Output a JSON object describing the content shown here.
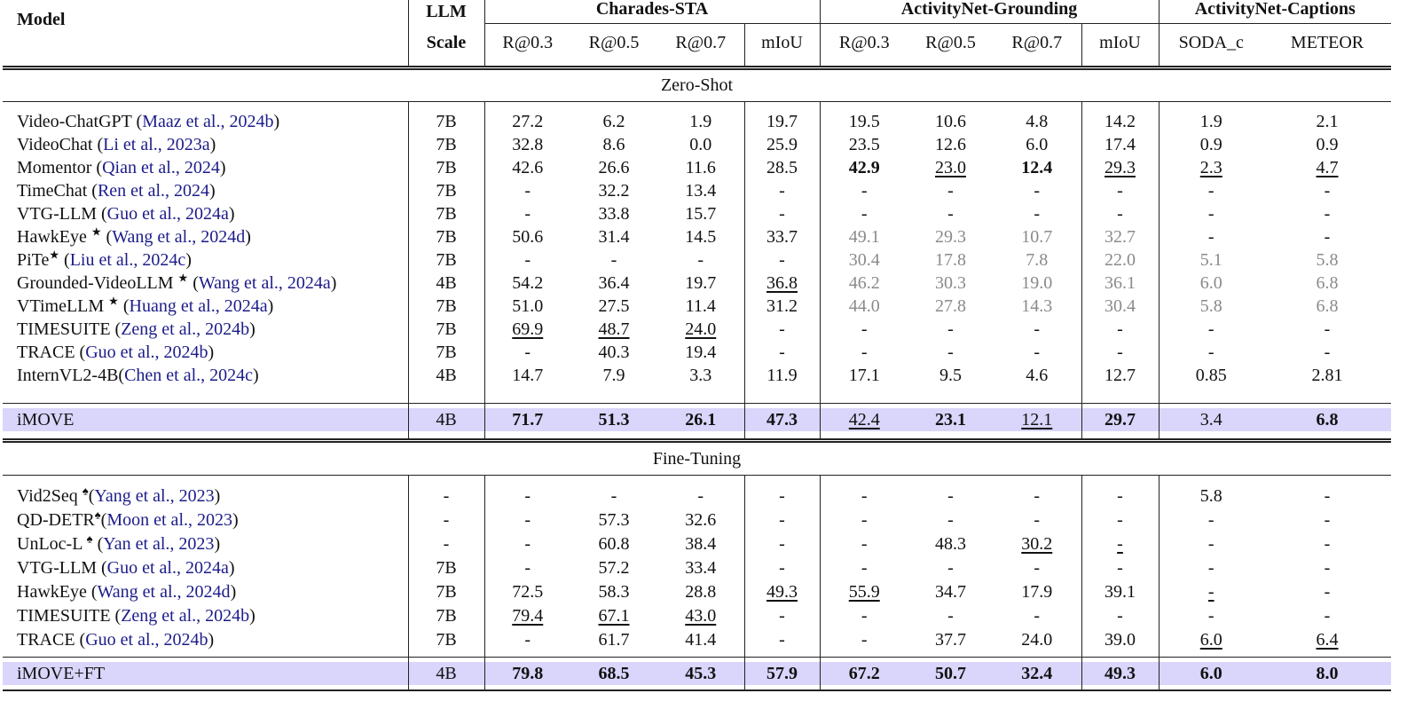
{
  "header": {
    "model": "Model",
    "llm": "LLM",
    "scale": "Scale",
    "groups": [
      "Charades-STA",
      "ActivityNet-Grounding",
      "ActivityNet-Captions"
    ],
    "metrics": [
      "R@0.3",
      "R@0.5",
      "R@0.7",
      "mIoU",
      "R@0.3",
      "R@0.5",
      "R@0.7",
      "mIoU",
      "SODA_c",
      "METEOR"
    ]
  },
  "sections": [
    {
      "title": "Zero-Shot",
      "rows": [
        {
          "model": "Video-ChatGPT (Maaz et al., 2024b)",
          "scale": "7B",
          "values": [
            "27.2",
            "6.2",
            "1.9",
            "19.7",
            "19.5",
            "10.6",
            "4.8",
            "14.2",
            "1.9",
            "2.1"
          ]
        },
        {
          "model": "VideoChat (Li et al., 2023a)",
          "scale": "7B",
          "values": [
            "32.8",
            "8.6",
            "0.0",
            "25.9",
            "23.5",
            "12.6",
            "6.0",
            "17.4",
            "0.9",
            "0.9"
          ]
        },
        {
          "model": "Momentor (Qian et al., 2024)",
          "scale": "7B",
          "values": [
            "42.6",
            "26.6",
            "11.6",
            "28.5",
            "42.9",
            "23.0",
            "12.4",
            "29.3",
            "2.3",
            "4.7"
          ]
        },
        {
          "model": "TimeChat (Ren et al., 2024)",
          "scale": "7B",
          "values": [
            "-",
            "32.2",
            "13.4",
            "-",
            "-",
            "-",
            "-",
            "-",
            "-",
            "-"
          ]
        },
        {
          "model": "VTG-LLM (Guo et al., 2024a)",
          "scale": "7B",
          "values": [
            "-",
            "33.8",
            "15.7",
            "-",
            "-",
            "-",
            "-",
            "-",
            "-",
            "-"
          ]
        },
        {
          "model": "HawkEye ★ (Wang et al., 2024d)",
          "scale": "7B",
          "values": [
            "50.6",
            "31.4",
            "14.5",
            "33.7",
            "49.1",
            "29.3",
            "10.7",
            "32.7",
            "-",
            "-"
          ]
        },
        {
          "model": "PiTe★ (Liu et al., 2024c)",
          "scale": "7B",
          "values": [
            "-",
            "-",
            "-",
            "-",
            "30.4",
            "17.8",
            "7.8",
            "22.0",
            "5.1",
            "5.8"
          ]
        },
        {
          "model": "Grounded-VideoLLM ★ (Wang et al., 2024a)",
          "scale": "4B",
          "values": [
            "54.2",
            "36.4",
            "19.7",
            "36.8",
            "46.2",
            "30.3",
            "19.0",
            "36.1",
            "6.0",
            "6.8"
          ]
        },
        {
          "model": "VTimeLLM ★ (Huang et al., 2024a)",
          "scale": "7B",
          "values": [
            "51.0",
            "27.5",
            "11.4",
            "31.2",
            "44.0",
            "27.8",
            "14.3",
            "30.4",
            "5.8",
            "6.8"
          ]
        },
        {
          "model": "TIMESUITE (Zeng et al., 2024b)",
          "scale": "7B",
          "values": [
            "69.9",
            "48.7",
            "24.0",
            "-",
            "-",
            "-",
            "-",
            "-",
            "-",
            "-"
          ]
        },
        {
          "model": "TRACE (Guo et al., 2024b)",
          "scale": "7B",
          "values": [
            "-",
            "40.3",
            "19.4",
            "-",
            "-",
            "-",
            "-",
            "-",
            "-",
            "-"
          ]
        },
        {
          "model": "InternVL2-4B(Chen et al., 2024c)",
          "scale": "4B",
          "values": [
            "14.7",
            "7.9",
            "3.3",
            "11.9",
            "17.1",
            "9.5",
            "4.6",
            "12.7",
            "0.85",
            "2.81"
          ]
        }
      ],
      "ours": {
        "model": "iMOVE",
        "scale": "4B",
        "values": [
          "71.7",
          "51.3",
          "26.1",
          "47.3",
          "42.4",
          "23.1",
          "12.1",
          "29.7",
          "3.4",
          "6.8"
        ]
      }
    },
    {
      "title": "Fine-Tuning",
      "rows": [
        {
          "model": "Vid2Seq ♠(Yang et al., 2023)",
          "scale": "-",
          "values": [
            "-",
            "-",
            "-",
            "-",
            "-",
            "-",
            "-",
            "-",
            "5.8",
            "-"
          ]
        },
        {
          "model": "QD-DETR♠(Moon et al., 2023)",
          "scale": "-",
          "values": [
            "-",
            "57.3",
            "32.6",
            "-",
            "-",
            "-",
            "-",
            "-",
            "-",
            "-"
          ]
        },
        {
          "model": "UnLoc-L ♠ (Yan et al., 2023)",
          "scale": "-",
          "values": [
            "-",
            "60.8",
            "38.4",
            "-",
            "-",
            "48.3",
            "30.2",
            "-",
            "-",
            "-"
          ]
        },
        {
          "model": "VTG-LLM (Guo et al., 2024a)",
          "scale": "7B",
          "values": [
            "-",
            "57.2",
            "33.4",
            "-",
            "-",
            "-",
            "-",
            "-",
            "-",
            "-"
          ]
        },
        {
          "model": "HawkEye (Wang et al., 2024d)",
          "scale": "7B",
          "values": [
            "72.5",
            "58.3",
            "28.8",
            "49.3",
            "55.9",
            "34.7",
            "17.9",
            "39.1",
            "-",
            "-"
          ]
        },
        {
          "model": "TIMESUITE (Zeng et al., 2024b)",
          "scale": "7B",
          "values": [
            "79.4",
            "67.1",
            "43.0",
            "-",
            "-",
            "-",
            "-",
            "-",
            "-",
            "-"
          ]
        },
        {
          "model": "TRACE (Guo et al., 2024b)",
          "scale": "7B",
          "values": [
            "-",
            "61.7",
            "41.4",
            "-",
            "-",
            "37.7",
            "24.0",
            "39.0",
            "6.0",
            "6.4"
          ]
        }
      ],
      "ours": {
        "model": "iMOVE+FT",
        "scale": "4B",
        "values": [
          "79.8",
          "68.5",
          "45.3",
          "57.9",
          "67.2",
          "50.7",
          "32.4",
          "49.3",
          "6.0",
          "8.0"
        ]
      }
    }
  ]
}
